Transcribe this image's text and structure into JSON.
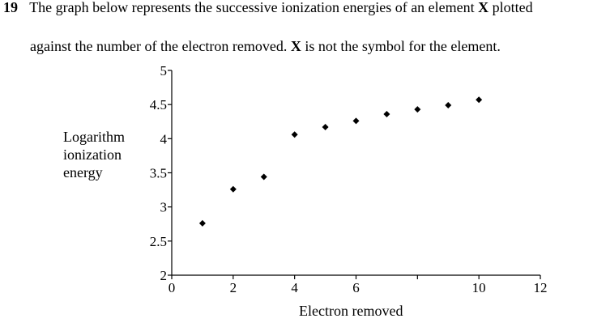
{
  "question": {
    "number": "19",
    "text_before": "The graph below represents the successive ionization energies of an element",
    "symbol": "X",
    "text_after": "plotted",
    "continuation_before": "against the number of the electron removed.",
    "continuation_symbol": "X",
    "continuation_after": "is not the symbol for the element."
  },
  "chart_data": {
    "type": "scatter",
    "xlabel": "Electron removed",
    "ylabel_lines": [
      "Logarithm",
      "ionization",
      "energy"
    ],
    "xlim": [
      0,
      12
    ],
    "ylim": [
      2,
      5
    ],
    "x_ticks": [
      0,
      2,
      4,
      6,
      8,
      10,
      12
    ],
    "x_tick_labels": [
      "0",
      "2",
      "4",
      "6",
      "",
      "10",
      "12"
    ],
    "y_ticks": [
      2,
      2.5,
      3,
      3.5,
      4,
      4.5,
      5
    ],
    "y_tick_labels": [
      "2",
      "2.5",
      "3",
      "3.5",
      "4",
      "4.5",
      "5"
    ],
    "grid": false,
    "marker": "diamond",
    "marker_color": "#000000",
    "points": [
      {
        "x": 1,
        "y": 2.76
      },
      {
        "x": 2,
        "y": 3.26
      },
      {
        "x": 3,
        "y": 3.44
      },
      {
        "x": 4,
        "y": 4.06
      },
      {
        "x": 5,
        "y": 4.17
      },
      {
        "x": 6,
        "y": 4.26
      },
      {
        "x": 7,
        "y": 4.36
      },
      {
        "x": 8,
        "y": 4.43
      },
      {
        "x": 9,
        "y": 4.49
      },
      {
        "x": 10,
        "y": 4.57
      }
    ]
  }
}
